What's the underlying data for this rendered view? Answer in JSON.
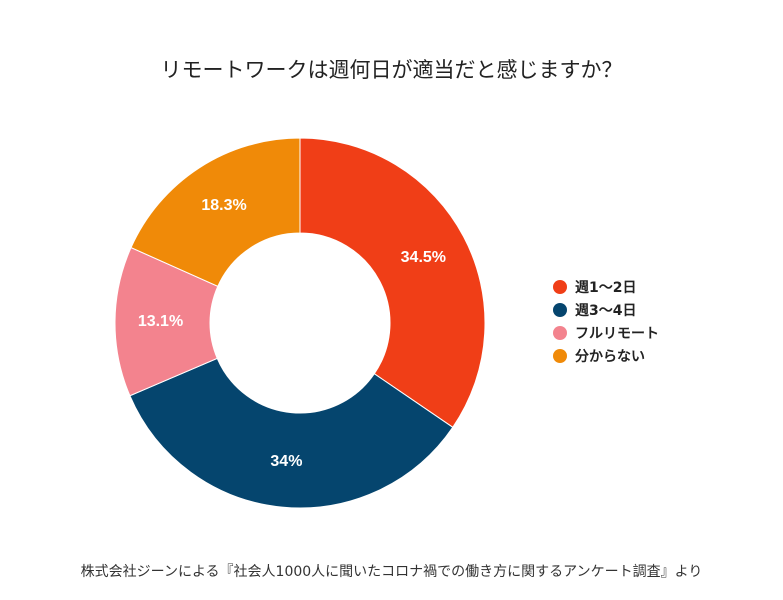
{
  "chart_data": {
    "type": "pie",
    "variant": "donut",
    "title": "リモートワークは週何日が適当だと感じますか？",
    "categories": [
      "週1〜2日",
      "週3〜4日",
      "フルリモート",
      "分からない"
    ],
    "values": [
      34.5,
      34,
      13.1,
      18.3
    ],
    "value_labels": [
      "34.5%",
      "34%",
      "13.1%",
      "18.3%"
    ],
    "colors": [
      "#F03E17",
      "#05456E",
      "#F3838E",
      "#F08A08"
    ],
    "legend_position": "right"
  },
  "source_note": "株式会社ジーンによる『社会人1000人に聞いたコロナ禍での働き方に関するアンケート調査』より"
}
